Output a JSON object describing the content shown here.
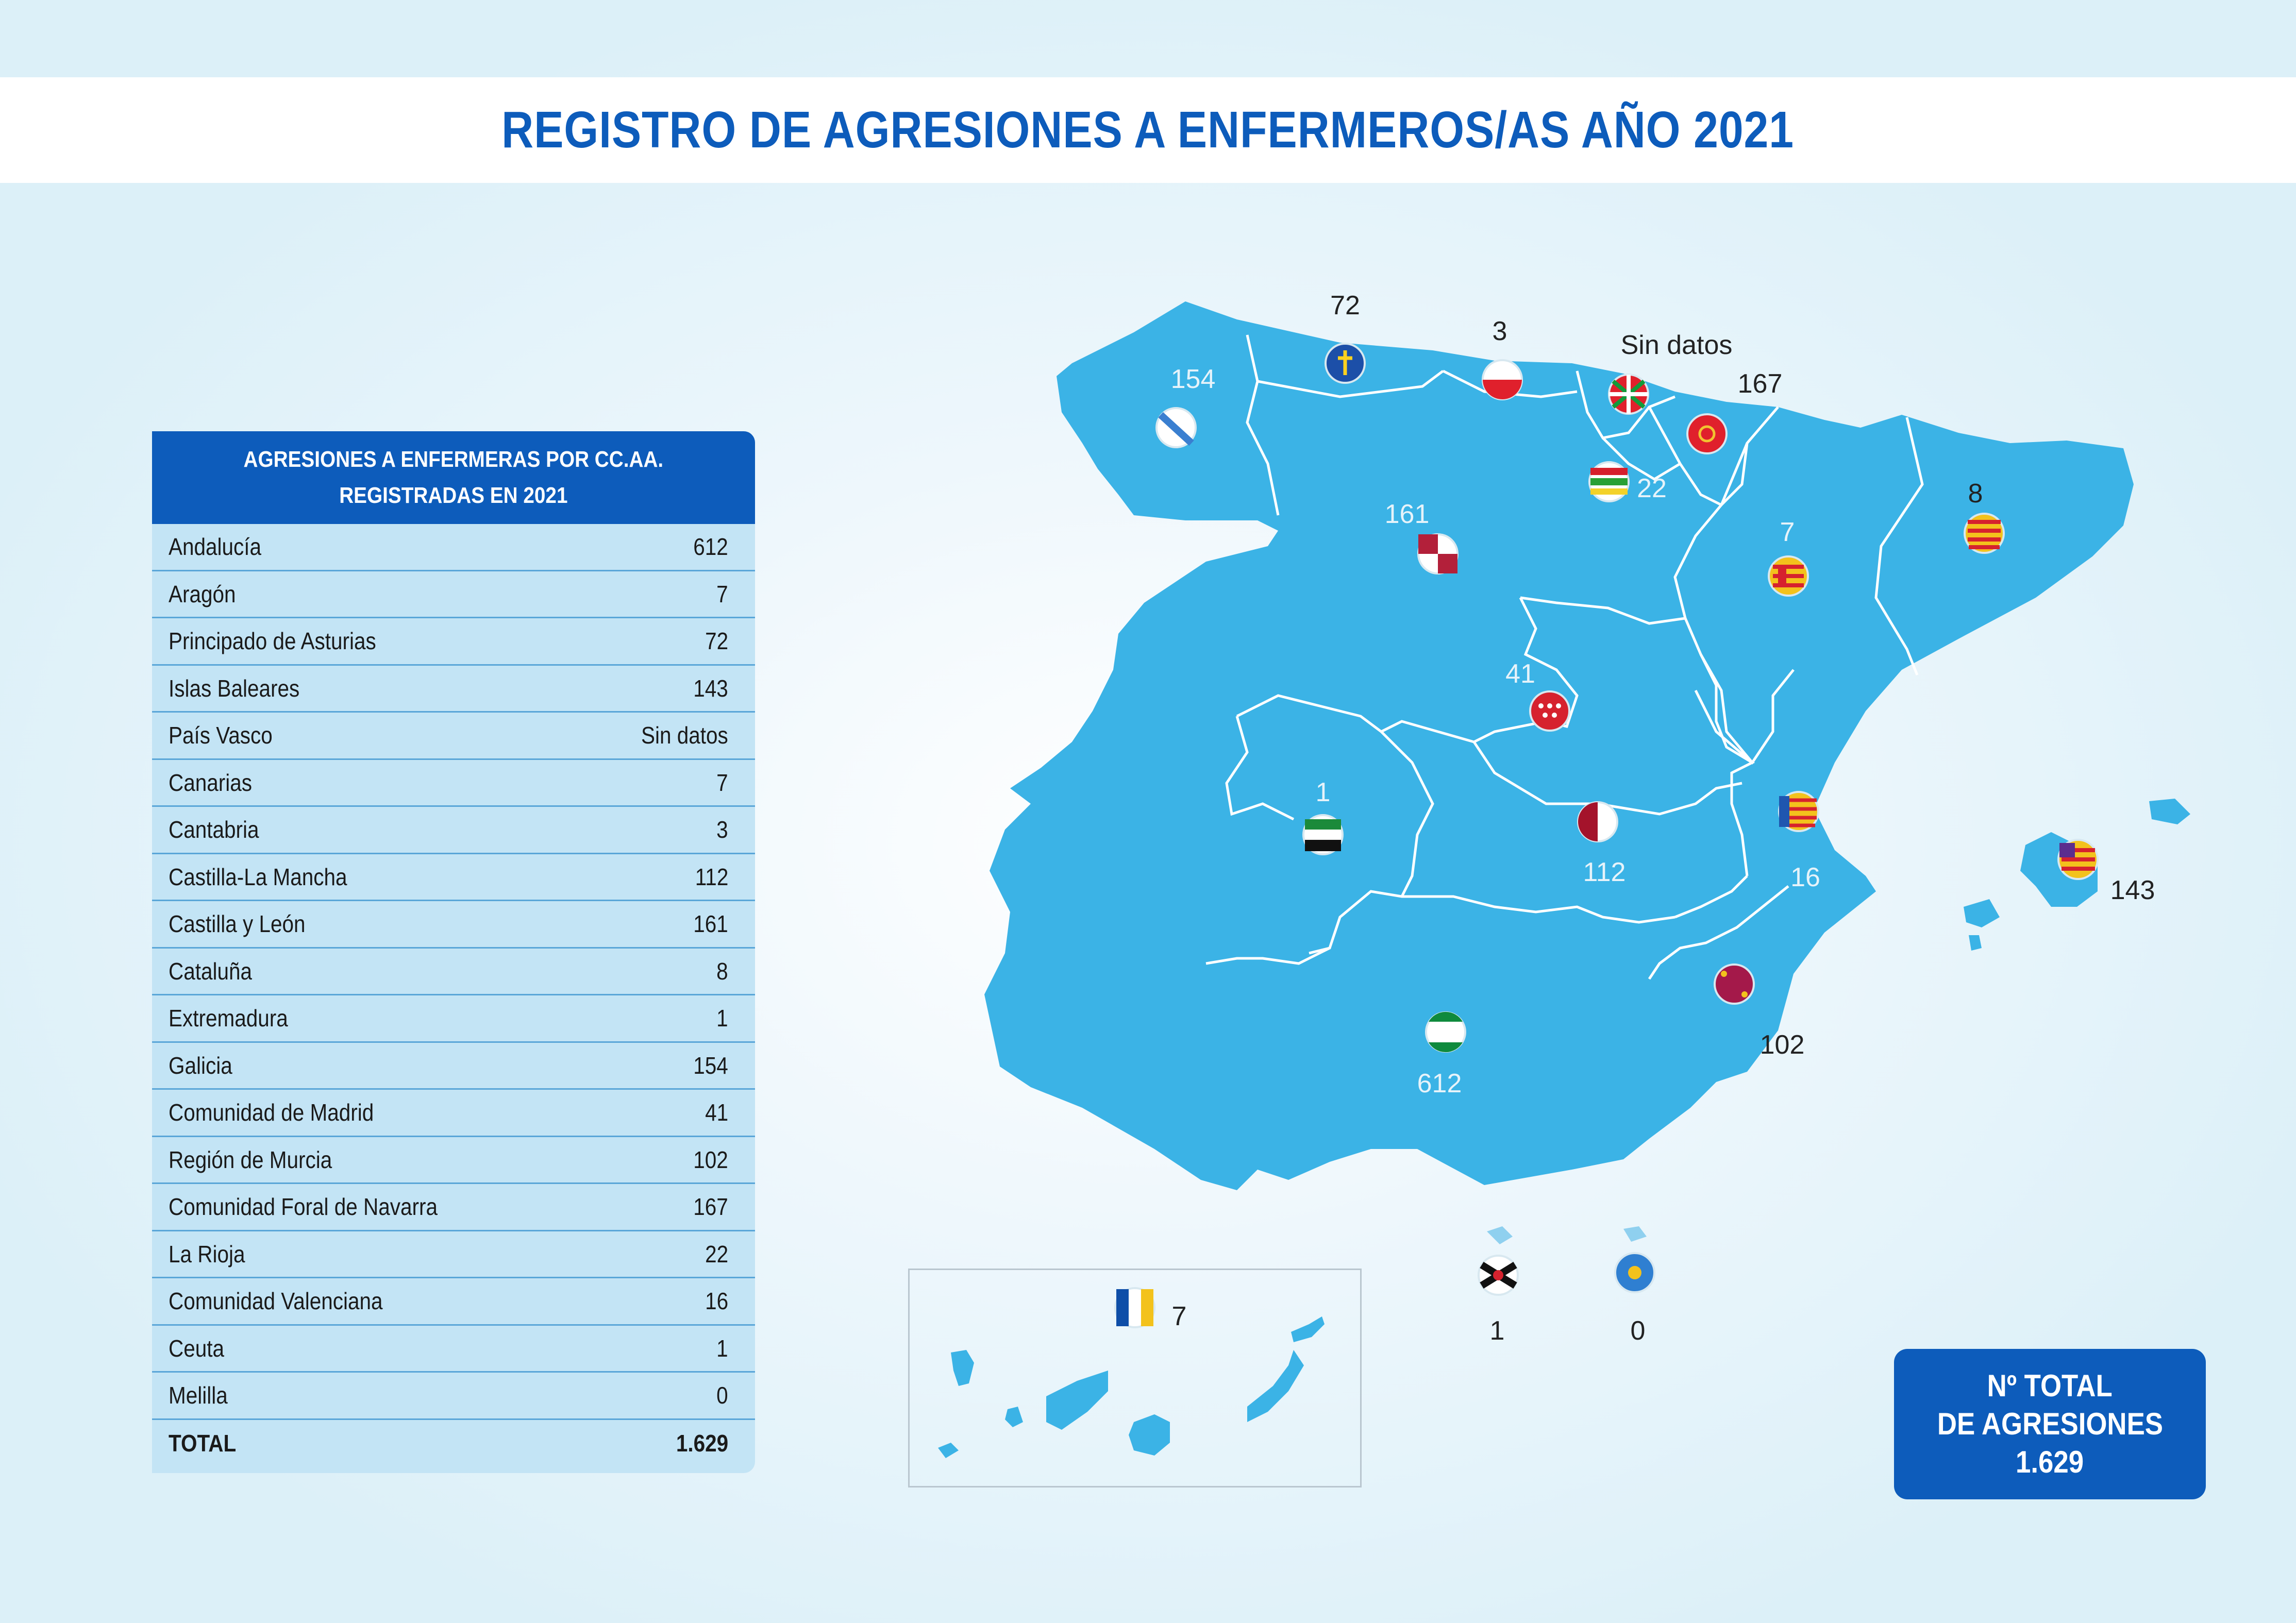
{
  "title": "REGISTRO DE AGRESIONES A ENFERMEROS/AS AÑO 2021",
  "table": {
    "header_line1": "AGRESIONES A ENFERMERAS POR CC.AA.",
    "header_line2": "REGISTRADAS EN 2021",
    "rows": [
      {
        "name": "Andalucía",
        "value": "612"
      },
      {
        "name": "Aragón",
        "value": "7"
      },
      {
        "name": "Principado de Asturias",
        "value": "72"
      },
      {
        "name": "Islas Baleares",
        "value": "143"
      },
      {
        "name": "País Vasco",
        "value": "Sin datos"
      },
      {
        "name": "Canarias",
        "value": "7"
      },
      {
        "name": "Cantabria",
        "value": "3"
      },
      {
        "name": "Castilla-La Mancha",
        "value": "112"
      },
      {
        "name": "Castilla y León",
        "value": "161"
      },
      {
        "name": "Cataluña",
        "value": "8"
      },
      {
        "name": "Extremadura",
        "value": "1"
      },
      {
        "name": "Galicia",
        "value": "154"
      },
      {
        "name": "Comunidad de Madrid",
        "value": "41"
      },
      {
        "name": "Región de Murcia",
        "value": "102"
      },
      {
        "name": "Comunidad Foral de Navarra",
        "value": "167"
      },
      {
        "name": "La Rioja",
        "value": "22"
      },
      {
        "name": "Comunidad Valenciana",
        "value": "16"
      },
      {
        "name": "Ceuta",
        "value": "1"
      },
      {
        "name": "Melilla",
        "value": "0"
      }
    ],
    "total_label": "TOTAL",
    "total_value": "1.629"
  },
  "map_labels": {
    "galicia": "154",
    "asturias": "72",
    "cantabria": "3",
    "pais_vasco": "Sin datos",
    "navarra": "167",
    "la_rioja": "22",
    "castilla_leon": "161",
    "aragon": "7",
    "cataluna": "8",
    "madrid": "41",
    "extremadura": "1",
    "castilla_la_mancha": "112",
    "valenciana": "16",
    "baleares": "143",
    "murcia": "102",
    "andalucia": "612",
    "canarias": "7",
    "ceuta": "1",
    "melilla": "0"
  },
  "total_box": {
    "line1": "Nº TOTAL",
    "line2": "DE AGRESIONES",
    "line3": "1.629"
  },
  "colors": {
    "brand_blue": "#0d5cbb",
    "map_fill": "#3bb3e6",
    "table_bg": "#c3e4f5"
  }
}
